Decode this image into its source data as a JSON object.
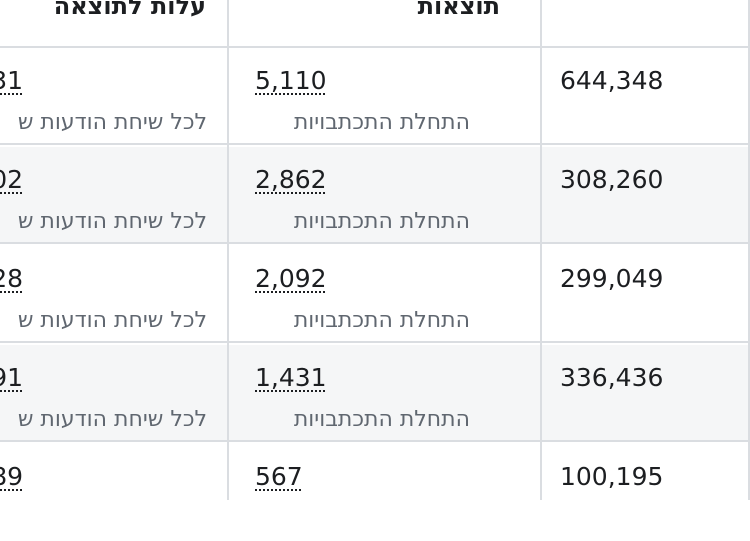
{
  "header": {
    "cost_per_result": "עלות לתוצאה",
    "results": "תוצאות"
  },
  "rows": [
    {
      "cost": "31",
      "cost_sub": "לכל שיחת הודעות ש",
      "results": "5,110",
      "results_sub": "התחלת התכתבויות",
      "reach": "644,348"
    },
    {
      "cost": "02",
      "cost_sub": "לכל שיחת הודעות ש",
      "results": "2,862",
      "results_sub": "התחלת התכתבויות",
      "reach": "308,260"
    },
    {
      "cost": "28",
      "cost_sub": "לכל שיחת הודעות ש",
      "results": "2,092",
      "results_sub": "התחלת התכתבויות",
      "reach": "299,049"
    },
    {
      "cost": "91",
      "cost_sub": "לכל שיחת הודעות ש",
      "results": "1,431",
      "results_sub": "התחלת התכתבויות",
      "reach": "336,436"
    },
    {
      "cost": "89",
      "cost_sub": "",
      "results": "567",
      "results_sub": "",
      "reach": "100,195"
    }
  ],
  "icons": {
    "sort": "chevron-down-icon"
  },
  "colors": {
    "border": "#dadde1",
    "row_shade": "#f5f6f7",
    "text": "#1c1e21",
    "subtext": "#606770"
  }
}
